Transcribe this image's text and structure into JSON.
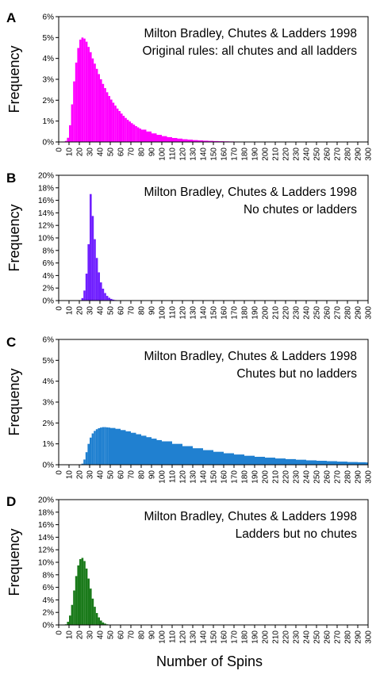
{
  "figure": {
    "x_axis_title": "Number of Spins"
  },
  "chart_data": [
    {
      "panel": "A",
      "type": "bar",
      "annotation_lines": [
        "Milton Bradley, Chutes & Ladders 1998",
        "Original rules: all chutes and all ladders"
      ],
      "ylabel": "Frequency",
      "xlabel": "Number of Spins",
      "xlim": [
        0,
        300
      ],
      "ylim": [
        0,
        6
      ],
      "y_ticks": [
        "0%",
        "1%",
        "2%",
        "3%",
        "4%",
        "5%",
        "6%"
      ],
      "x_ticks": [
        "0",
        "10",
        "20",
        "30",
        "40",
        "50",
        "60",
        "70",
        "80",
        "90",
        "100",
        "110",
        "120",
        "130",
        "140",
        "150",
        "160",
        "170",
        "180",
        "190",
        "200",
        "210",
        "220",
        "230",
        "240",
        "250",
        "260",
        "270",
        "280",
        "290",
        "300"
      ],
      "color": "#ff00ff",
      "bin_width": 2,
      "x": [
        6,
        8,
        10,
        12,
        14,
        16,
        18,
        20,
        22,
        24,
        26,
        28,
        30,
        32,
        34,
        36,
        38,
        40,
        42,
        44,
        46,
        48,
        50,
        52,
        54,
        56,
        58,
        60,
        62,
        64,
        66,
        68,
        70,
        72,
        74,
        76,
        78,
        80,
        85,
        90,
        95,
        100,
        105,
        110,
        115,
        120,
        125,
        130,
        135,
        140,
        145,
        150,
        155,
        160,
        165,
        170,
        175,
        180,
        185,
        190,
        195,
        200,
        210,
        220,
        230,
        240
      ],
      "values": [
        0.05,
        0.2,
        0.8,
        1.8,
        2.9,
        3.8,
        4.5,
        4.9,
        5.0,
        4.95,
        4.8,
        4.55,
        4.3,
        4.0,
        3.75,
        3.5,
        3.25,
        3.0,
        2.78,
        2.58,
        2.38,
        2.2,
        2.03,
        1.88,
        1.74,
        1.6,
        1.48,
        1.36,
        1.25,
        1.15,
        1.06,
        0.98,
        0.9,
        0.83,
        0.76,
        0.7,
        0.64,
        0.59,
        0.5,
        0.41,
        0.34,
        0.28,
        0.23,
        0.19,
        0.16,
        0.13,
        0.11,
        0.09,
        0.075,
        0.062,
        0.052,
        0.043,
        0.036,
        0.03,
        0.025,
        0.02,
        0.017,
        0.014,
        0.011,
        0.009,
        0.008,
        0.006,
        0.004,
        0.003,
        0.002,
        0.001
      ]
    },
    {
      "panel": "B",
      "type": "bar",
      "annotation_lines": [
        "Milton Bradley, Chutes & Ladders 1998",
        "No chutes or ladders"
      ],
      "ylabel": "Frequency",
      "xlabel": "Number of Spins",
      "xlim": [
        0,
        300
      ],
      "ylim": [
        0,
        20
      ],
      "y_ticks": [
        "0%",
        "2%",
        "4%",
        "6%",
        "8%",
        "10%",
        "12%",
        "14%",
        "16%",
        "18%",
        "20%"
      ],
      "x_ticks": [
        "0",
        "10",
        "20",
        "30",
        "40",
        "50",
        "60",
        "70",
        "80",
        "90",
        "100",
        "110",
        "120",
        "130",
        "140",
        "150",
        "160",
        "170",
        "180",
        "190",
        "200",
        "210",
        "220",
        "230",
        "240",
        "250",
        "260",
        "270",
        "280",
        "290",
        "300"
      ],
      "color": "#7020ff",
      "bin_width": 2,
      "x": [
        22,
        24,
        26,
        28,
        30,
        32,
        34,
        36,
        38,
        40,
        42,
        44,
        46,
        48,
        50,
        52,
        54,
        56
      ],
      "values": [
        0.4,
        1.6,
        4.3,
        9.0,
        17.0,
        13.5,
        9.8,
        6.8,
        4.5,
        2.9,
        1.9,
        1.2,
        0.75,
        0.45,
        0.27,
        0.15,
        0.08,
        0.04
      ]
    },
    {
      "panel": "C",
      "type": "bar",
      "annotation_lines": [
        "Milton Bradley, Chutes & Ladders 1998",
        "Chutes but no ladders"
      ],
      "ylabel": "Frequency",
      "xlabel": "Number of Spins",
      "xlim": [
        0,
        300
      ],
      "ylim": [
        0,
        6
      ],
      "y_ticks": [
        "0%",
        "1%",
        "2%",
        "3%",
        "4%",
        "5%",
        "6%"
      ],
      "x_ticks": [
        "0",
        "10",
        "20",
        "30",
        "40",
        "50",
        "60",
        "70",
        "80",
        "90",
        "100",
        "110",
        "120",
        "130",
        "140",
        "150",
        "160",
        "170",
        "180",
        "190",
        "200",
        "210",
        "220",
        "230",
        "240",
        "250",
        "260",
        "270",
        "280",
        "290",
        "300"
      ],
      "color": "#2080d0",
      "bin_width": 2,
      "x": [
        22,
        24,
        26,
        28,
        30,
        32,
        34,
        36,
        38,
        40,
        42,
        44,
        46,
        48,
        50,
        55,
        60,
        65,
        70,
        75,
        80,
        85,
        90,
        95,
        100,
        110,
        120,
        130,
        140,
        150,
        160,
        170,
        180,
        190,
        200,
        210,
        220,
        230,
        240,
        250,
        260,
        270,
        280,
        290,
        298
      ],
      "values": [
        0.05,
        0.25,
        0.6,
        1.0,
        1.3,
        1.5,
        1.62,
        1.7,
        1.75,
        1.78,
        1.8,
        1.8,
        1.79,
        1.78,
        1.76,
        1.72,
        1.66,
        1.6,
        1.53,
        1.46,
        1.39,
        1.32,
        1.25,
        1.18,
        1.12,
        1.0,
        0.89,
        0.79,
        0.7,
        0.62,
        0.55,
        0.49,
        0.43,
        0.38,
        0.34,
        0.3,
        0.27,
        0.24,
        0.21,
        0.19,
        0.17,
        0.15,
        0.13,
        0.12,
        0.11
      ]
    },
    {
      "panel": "D",
      "type": "bar",
      "annotation_lines": [
        "Milton Bradley, Chutes & Ladders 1998",
        "Ladders but no chutes"
      ],
      "ylabel": "Frequency",
      "xlabel": "Number of Spins",
      "xlim": [
        0,
        300
      ],
      "ylim": [
        0,
        20
      ],
      "y_ticks": [
        "0%",
        "2%",
        "4%",
        "6%",
        "8%",
        "10%",
        "12%",
        "14%",
        "16%",
        "18%",
        "20%"
      ],
      "x_ticks": [
        "0",
        "10",
        "20",
        "30",
        "40",
        "50",
        "60",
        "70",
        "80",
        "90",
        "100",
        "110",
        "120",
        "130",
        "140",
        "150",
        "160",
        "170",
        "180",
        "190",
        "200",
        "210",
        "220",
        "230",
        "240",
        "250",
        "260",
        "270",
        "280",
        "290",
        "300"
      ],
      "color": "#1a7a1a",
      "bin_width": 2,
      "x": [
        6,
        8,
        10,
        12,
        14,
        16,
        18,
        20,
        22,
        24,
        26,
        28,
        30,
        32,
        34,
        36,
        38,
        40,
        42,
        44,
        46,
        48
      ],
      "values": [
        0.1,
        0.5,
        1.5,
        3.2,
        5.5,
        7.8,
        9.5,
        10.5,
        10.7,
        10.2,
        9.0,
        7.4,
        5.8,
        4.2,
        2.9,
        1.9,
        1.2,
        0.7,
        0.4,
        0.22,
        0.1,
        0.05
      ]
    }
  ]
}
